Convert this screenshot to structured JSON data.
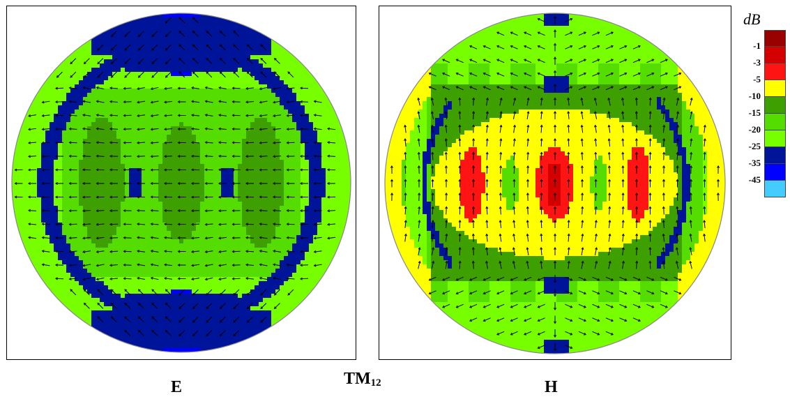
{
  "title_main": "TM",
  "title_sub": "12",
  "panel_e_label": "E",
  "panel_h_label": "H",
  "legend": {
    "unit": "dB",
    "ticks": [
      "-1",
      "-3",
      "-5",
      "-10",
      "-15",
      "-20",
      "-25",
      "-35",
      "-45"
    ],
    "colors": [
      "#990000",
      "#d40000",
      "#ff1414",
      "#ffff00",
      "#3ea000",
      "#55dc00",
      "#77ff00",
      "#001499",
      "#0000ff",
      "#44ccff"
    ]
  }
}
